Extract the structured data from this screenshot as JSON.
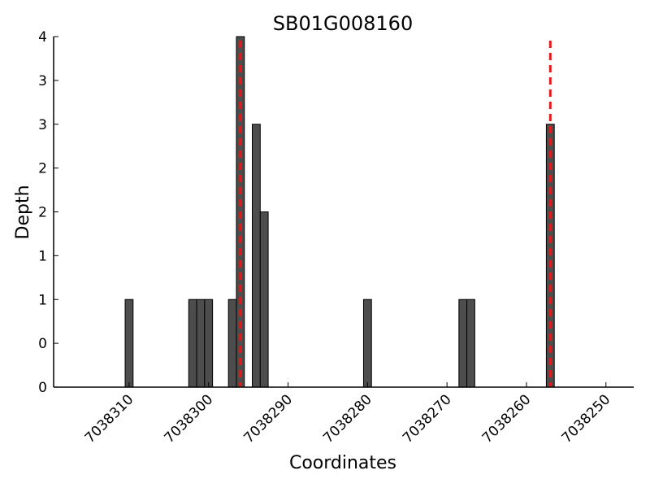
{
  "chart_data": {
    "type": "bar",
    "title": "SB01G008160",
    "xlabel": "Coordinates",
    "ylabel": "Depth",
    "x_reversed": true,
    "xlim": [
      7038319.5,
      7038246.5
    ],
    "ylim": [
      0,
      4
    ],
    "x_ticks": [
      7038310,
      7038300,
      7038290,
      7038280,
      7038270,
      7038260,
      7038250
    ],
    "x_tick_labels": [
      "7038310",
      "7038300",
      "7038290",
      "7038280",
      "7038270",
      "7038260",
      "7038250"
    ],
    "y_ticks": [
      0,
      0.5,
      1,
      1.5,
      2,
      2.5,
      3,
      3.5,
      4
    ],
    "y_tick_labels": [
      "0",
      "0",
      "1",
      "1",
      "2",
      "2",
      "3",
      "3",
      "4"
    ],
    "bars": [
      {
        "x": 7038310,
        "y": 1
      },
      {
        "x": 7038302,
        "y": 1
      },
      {
        "x": 7038301,
        "y": 1
      },
      {
        "x": 7038300,
        "y": 1
      },
      {
        "x": 7038297,
        "y": 1
      },
      {
        "x": 7038296,
        "y": 4
      },
      {
        "x": 7038294,
        "y": 3
      },
      {
        "x": 7038293,
        "y": 2
      },
      {
        "x": 7038280,
        "y": 1
      },
      {
        "x": 7038268,
        "y": 1
      },
      {
        "x": 7038267,
        "y": 1
      },
      {
        "x": 7038257,
        "y": 3
      }
    ],
    "vlines": [
      7038296,
      7038257
    ],
    "grid": false,
    "colors": {
      "bar_fill": "#4d4d4d",
      "bar_edge": "#000000",
      "vline": "#e31a1c"
    }
  }
}
